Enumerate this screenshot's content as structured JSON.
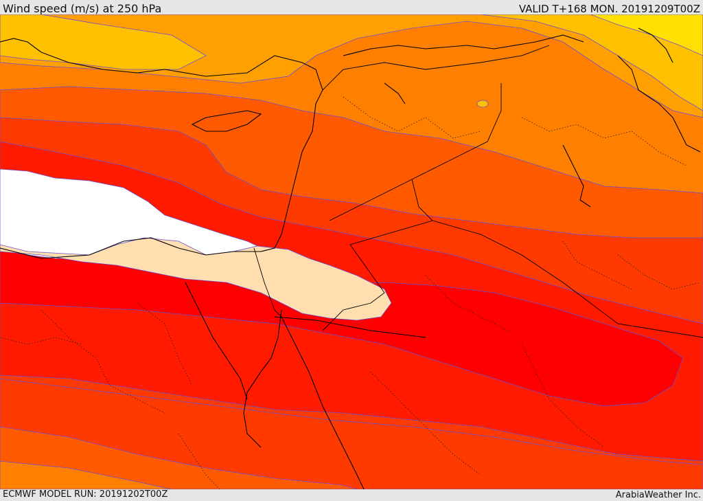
{
  "header": {
    "title": "Wind speed (m/s) at 250 hPa",
    "valid": "VALID T+168 MON. 20191209T00Z"
  },
  "footer": {
    "model_run": "ECMWF MODEL RUN: 20191202T00Z",
    "credit": "ArabiaWeather Inc."
  },
  "colors": {
    "band_1": "#ffe000",
    "band_2": "#ffc000",
    "band_3": "#ffa000",
    "band_4": "#ff7f00",
    "band_5": "#ff5a00",
    "band_6": "#ff3a00",
    "band_7": "#ff1a00",
    "band_8": "#ff0000",
    "core_light": "#ffdfb0",
    "core_white": "#ffffff",
    "contour": "#6a4fcf",
    "coastline": "#000000"
  }
}
